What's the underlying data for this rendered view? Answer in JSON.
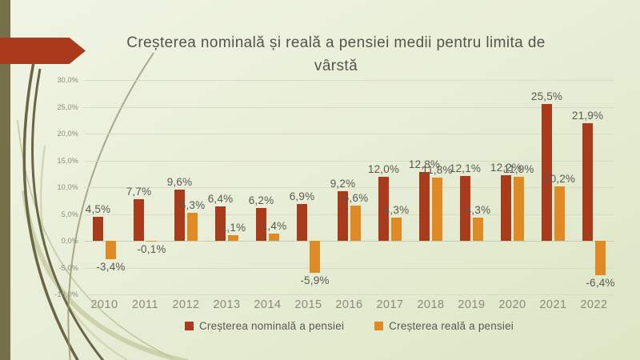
{
  "slide": {
    "title": "Creșterea nominală și reală a pensiei medii pentru limita de vârstă",
    "colors": {
      "accent_red": "#a93a1c",
      "accent_orange": "#e08a26",
      "left_band_olive": "#75704a",
      "background_light": "#f0f4e3",
      "background_dark": "#dde6c5",
      "gridline": "#d8dcc5",
      "text_dark": "#5a5954",
      "text_muted": "#8b8b7e"
    }
  },
  "chart_data": {
    "type": "bar",
    "title": "Creșterea nominală și reală a pensiei medii pentru limita de vârstă",
    "categories": [
      "2010",
      "2011",
      "2012",
      "2013",
      "2014",
      "2015",
      "2016",
      "2017",
      "2018",
      "2019",
      "2020",
      "2021",
      "2022"
    ],
    "series": [
      {
        "name": "Creșterea nominală a pensiei",
        "color": "#a93a1c",
        "values": [
          4.5,
          7.7,
          9.6,
          6.4,
          6.2,
          6.9,
          9.2,
          12.0,
          12.8,
          12.1,
          12.2,
          25.5,
          21.9
        ],
        "labels": [
          "4,5%",
          "7,7%",
          "9,6%",
          "6,4%",
          "6,2%",
          "6,9%",
          "9,2%",
          "12,0%",
          "12,8%",
          "12,1%",
          "12,2%",
          "25,5%",
          "21,9%"
        ]
      },
      {
        "name": "Creșterea reală a pensiei",
        "color": "#e08a26",
        "values": [
          -3.4,
          -0.1,
          5.3,
          1.1,
          1.4,
          -5.9,
          6.6,
          4.3,
          11.8,
          4.3,
          11.9,
          10.2,
          -6.4
        ],
        "labels": [
          "-3,4%",
          "-0,1%",
          "5,3%",
          "1,1%",
          "1,4%",
          "-5,9%",
          "6,6%",
          "4,3%",
          "11,8%",
          "4,3%",
          "11,9%",
          "10,2%",
          "-6,4%"
        ]
      }
    ],
    "xlabel": "",
    "ylabel": "",
    "ylim": [
      -10,
      30
    ],
    "yticks": [
      30,
      25,
      20,
      15,
      10,
      5,
      0,
      -5,
      -10
    ],
    "ytick_labels": [
      "30,0%",
      "25,0%",
      "20,0%",
      "15,0%",
      "10,0%",
      "5,0%",
      "0,0%",
      "-5,0%",
      "-10,0%"
    ],
    "grid": true,
    "legend_position": "bottom"
  }
}
